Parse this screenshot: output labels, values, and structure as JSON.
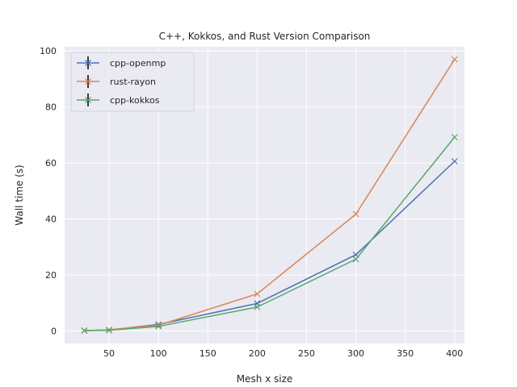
{
  "chart_data": {
    "type": "line",
    "title": "C++, Kokkos, and Rust Version Comparison",
    "xlabel": "Mesh x size",
    "ylabel": "Wall time (s)",
    "xlim": [
      5,
      410
    ],
    "ylim": [
      -4.5,
      101.5
    ],
    "xticks": [
      50,
      100,
      150,
      200,
      250,
      300,
      350,
      400
    ],
    "yticks": [
      0,
      20,
      40,
      60,
      80,
      100
    ],
    "grid": true,
    "legend_position": "top-left",
    "series": [
      {
        "name": "cpp-openmp",
        "color": "#4c72b0",
        "marker": "x",
        "x": [
          25,
          50,
          100,
          200,
          300,
          400
        ],
        "y": [
          0.1,
          0.3,
          2.3,
          9.8,
          27.2,
          60.6
        ]
      },
      {
        "name": "rust-rayon",
        "color": "#dd8452",
        "marker": "x",
        "x": [
          25,
          50,
          100,
          200,
          300,
          400
        ],
        "y": [
          0.1,
          0.4,
          2.0,
          13.2,
          41.7,
          97.0
        ]
      },
      {
        "name": "cpp-kokkos",
        "color": "#55a868",
        "marker": "x",
        "x": [
          25,
          50,
          100,
          200,
          300,
          400
        ],
        "y": [
          0.1,
          0.2,
          1.6,
          8.5,
          25.6,
          69.2
        ]
      }
    ]
  }
}
